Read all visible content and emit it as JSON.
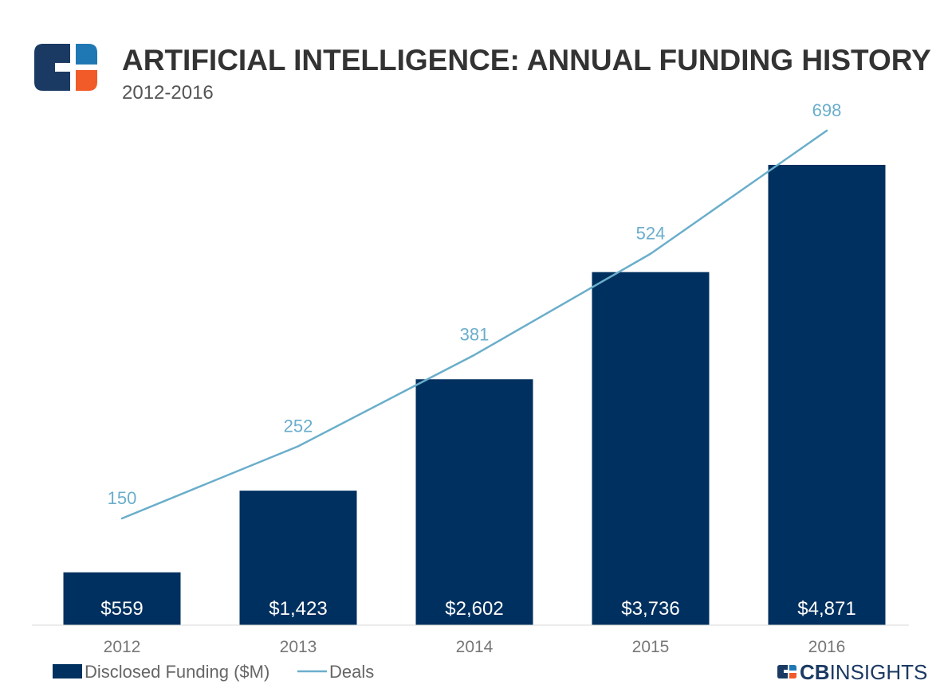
{
  "header": {
    "title": "ARTIFICIAL INTELLIGENCE: ANNUAL FUNDING HISTORY",
    "subtitle": "2012-2016"
  },
  "brand": {
    "logo_icon": "cb-insights-logo-icon",
    "name_bold": "CB",
    "name_rest": "INSIGHTS"
  },
  "colors": {
    "bar": "#00305f",
    "line": "#6aaecb",
    "logo_dark": "#1b3a63",
    "logo_blue": "#1f78b4",
    "logo_orange": "#f15a29"
  },
  "chart_data": {
    "type": "bar",
    "categories": [
      "2012",
      "2013",
      "2014",
      "2015",
      "2016"
    ],
    "series": [
      {
        "name": "Disclosed Funding ($M)",
        "type": "bar",
        "values": [
          559,
          1423,
          2602,
          3736,
          4871
        ],
        "labels": [
          "$559",
          "$1,423",
          "$2,602",
          "$3,736",
          "$4,871"
        ]
      },
      {
        "name": "Deals",
        "type": "line",
        "values": [
          150,
          252,
          381,
          524,
          698
        ],
        "labels": [
          "150",
          "252",
          "381",
          "524",
          "698"
        ]
      }
    ],
    "title": "ARTIFICIAL INTELLIGENCE: ANNUAL FUNDING HISTORY",
    "subtitle": "2012-2016",
    "xlabel": "",
    "ylabel": "",
    "grid": false,
    "legend_position": "bottom-left"
  }
}
